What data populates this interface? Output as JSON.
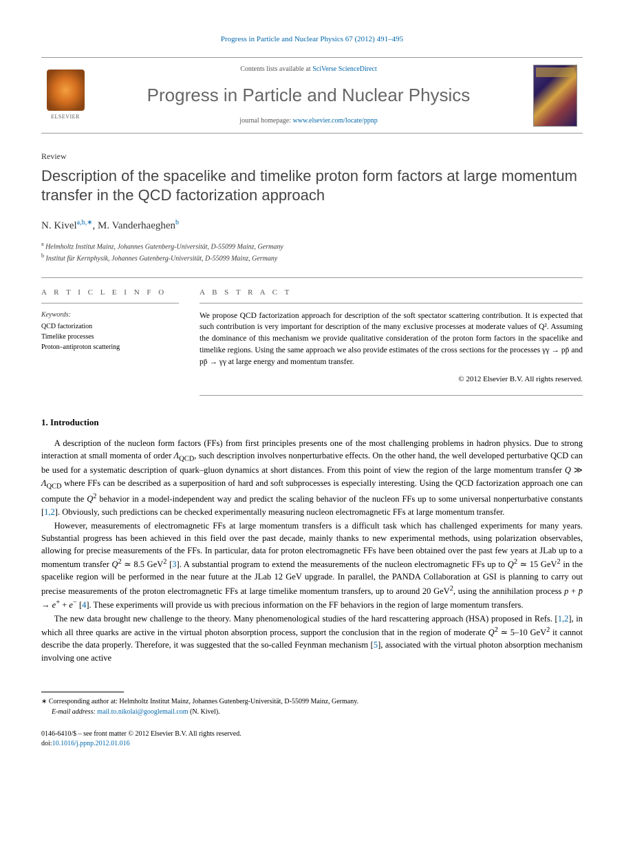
{
  "header": {
    "citation": "Progress in Particle and Nuclear Physics 67 (2012) 491–495"
  },
  "masthead": {
    "publisher_name": "ELSEVIER",
    "contents_prefix": "Contents lists available at ",
    "contents_link_text": "SciVerse ScienceDirect",
    "journal_name": "Progress in Particle and Nuclear Physics",
    "homepage_prefix": "journal homepage: ",
    "homepage_url": "www.elsevier.com/locate/ppnp"
  },
  "article": {
    "type_label": "Review",
    "title": "Description of the spacelike and timelike proton form factors at large momentum transfer in the QCD factorization approach",
    "authors_html": "N. Kivel",
    "author1_sup": "a,b,∗",
    "author2": ", M. Vanderhaeghen",
    "author2_sup": "b",
    "affiliations": {
      "a_sup": "a",
      "a_text": " Helmholtz Institut Mainz, Johannes Gutenberg-Universität, D-55099 Mainz, Germany",
      "b_sup": "b",
      "b_text": " Institut für Kernphysik, Johannes Gutenberg-Universität, D-55099 Mainz, Germany"
    }
  },
  "info": {
    "heading": "A R T I C L E   I N F O",
    "keywords_label": "Keywords:",
    "keywords": "QCD factorization\nTimelike processes\nProton–antiproton scattering"
  },
  "abstract": {
    "heading": "A B S T R A C T",
    "text": "We propose QCD factorization approach for description of the soft spectator scattering contribution. It is expected that such contribution is very important for description of the many exclusive processes at moderate values of Q². Assuming the dominance of this mechanism we provide qualitative consideration of the proton form factors in the spacelike and timelike regions. Using the same approach we also provide estimates of the cross sections for the processes γγ → pp̄ and pp̄ → γγ at large energy and momentum transfer.",
    "copyright": "© 2012 Elsevier B.V. All rights reserved."
  },
  "body": {
    "section1_heading": "1. Introduction",
    "para1": "A description of the nucleon form factors (FFs) from first principles presents one of the most challenging problems in hadron physics. Due to strong interaction at small momenta of order ΛQCD, such description involves nonperturbative effects. On the other hand, the well developed perturbative QCD can be used for a systematic description of quark–gluon dynamics at short distances. From this point of view the region of the large momentum transfer Q ≫ ΛQCD where FFs can be described as a superposition of hard and soft subprocesses is especially interesting. Using the QCD factorization approach one can compute the Q² behavior in a model-independent way and predict the scaling behavior of the nucleon FFs up to some universal nonperturbative constants [1,2]. Obviously, such predictions can be checked experimentally measuring nucleon electromagnetic FFs at large momentum transfer.",
    "para2": "However, measurements of electromagnetic FFs at large momentum transfers is a difficult task which has challenged experiments for many years. Substantial progress has been achieved in this field over the past decade, mainly thanks to new experimental methods, using polarization observables, allowing for precise measurements of the FFs. In particular, data for proton electromagnetic FFs have been obtained over the past few years at JLab up to a momentum transfer Q² ≃ 8.5 GeV² [3]. A substantial program to extend the measurements of the nucleon electromagnetic FFs up to Q² ≃ 15 GeV² in the spacelike region will be performed in the near future at the JLab 12 GeV upgrade. In parallel, the PANDA Collaboration at GSI is planning to carry out precise measurements of the proton electromagnetic FFs at large timelike momentum transfers, up to around 20 GeV², using the annihilation process p + p̄ → e⁺ + e⁻ [4]. These experiments will provide us with precious information on the FF behaviors in the region of large momentum transfers.",
    "para3": "The new data brought new challenge to the theory. Many phenomenological studies of the hard rescattering approach (HSA) proposed in Refs. [1,2], in which all three quarks are active in the virtual photon absorption process, support the conclusion that in the region of moderate Q² ≃ 5–10 GeV² it cannot describe the data properly. Therefore, it was suggested that the so-called Feynman mechanism [5], associated with the virtual photon absorption mechanism involving one active"
  },
  "refs": {
    "r12": "1,2",
    "r3": "3",
    "r4": "4",
    "r5": "5"
  },
  "footnotes": {
    "corr_marker": "∗",
    "corr_text": " Corresponding author at: Helmholtz Institut Mainz, Johannes Gutenberg-Universität, D-55099 Mainz, Germany.",
    "email_label": "E-mail address: ",
    "email": "mail.to.nikolai@googlemail.com",
    "email_suffix": " (N. Kivel)."
  },
  "footer": {
    "issn_line": "0146-6410/$ – see front matter © 2012 Elsevier B.V. All rights reserved.",
    "doi_label": "doi:",
    "doi": "10.1016/j.ppnp.2012.01.016"
  },
  "colors": {
    "link": "#0066aa",
    "rule": "#999999",
    "title_gray": "#666666"
  }
}
